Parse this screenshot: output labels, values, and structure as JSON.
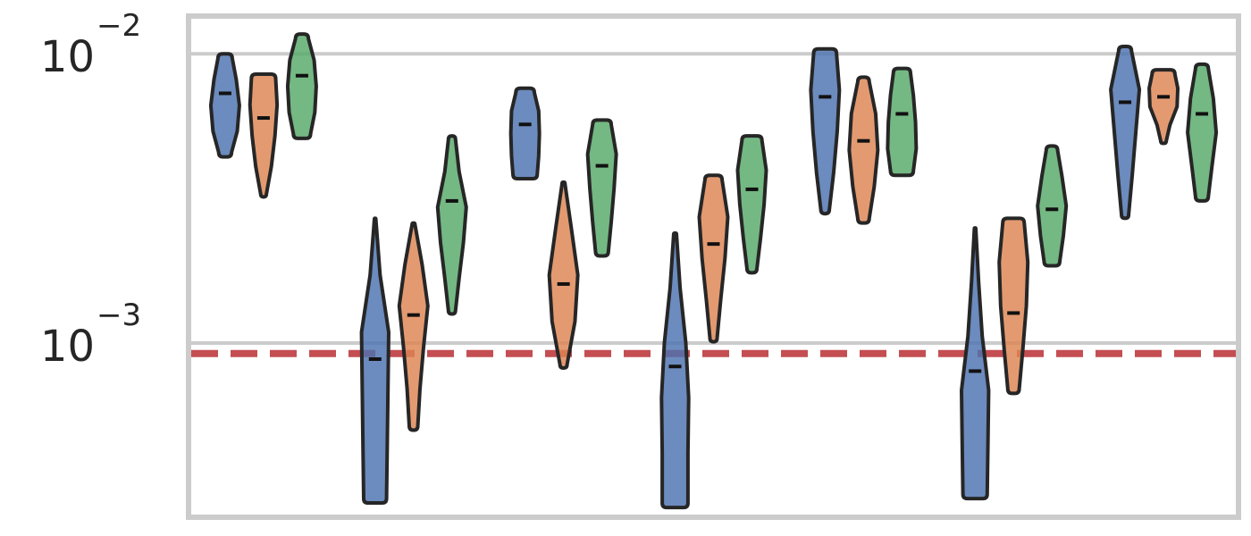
{
  "chart_data": {
    "type": "violin",
    "title": "",
    "xlabel": "",
    "ylabel": "",
    "y_scale": "log",
    "ylim": [
      0.00025,
      0.0135
    ],
    "y_ticks": [
      {
        "value": 0.001,
        "base": "10",
        "exponent": "−3"
      },
      {
        "value": 0.01,
        "base": "10",
        "exponent": "−2"
      }
    ],
    "grid": true,
    "reference_line": {
      "value": 0.00092,
      "color": "#c44e52",
      "style": "dashed"
    },
    "series_colors": [
      "#4c72b0",
      "#dd8452",
      "#55a868"
    ],
    "groups": [
      {
        "violins": [
          {
            "min": 0.0044,
            "max": 0.01,
            "median": 0.0073,
            "widths": [
              0.45,
              0.85,
              1.0,
              0.78,
              0.5
            ]
          },
          {
            "min": 0.0032,
            "max": 0.0085,
            "median": 0.006,
            "widths": [
              0.2,
              0.55,
              0.8,
              0.95,
              0.85
            ]
          },
          {
            "min": 0.0051,
            "max": 0.0117,
            "median": 0.0084,
            "widths": [
              0.6,
              0.9,
              1.0,
              0.85,
              0.45
            ]
          }
        ]
      },
      {
        "violins": [
          {
            "min": 0.00028,
            "max": 0.0027,
            "median": 0.00088,
            "widths": [
              0.8,
              0.85,
              0.9,
              0.95,
              0.35,
              0.05
            ]
          },
          {
            "min": 0.0005,
            "max": 0.0026,
            "median": 0.00125,
            "widths": [
              0.3,
              0.45,
              0.7,
              1.0,
              0.6,
              0.1
            ]
          },
          {
            "min": 0.00126,
            "max": 0.0052,
            "median": 0.0031,
            "widths": [
              0.25,
              0.5,
              0.8,
              1.0,
              0.5,
              0.25
            ]
          }
        ]
      },
      {
        "violins": [
          {
            "min": 0.0037,
            "max": 0.0076,
            "median": 0.0057,
            "widths": [
              0.85,
              0.95,
              1.0,
              0.95,
              0.65
            ]
          },
          {
            "min": 0.00082,
            "max": 0.0036,
            "median": 0.0016,
            "widths": [
              0.25,
              0.8,
              1.0,
              0.55,
              0.1
            ]
          },
          {
            "min": 0.002,
            "max": 0.0059,
            "median": 0.0041,
            "widths": [
              0.45,
              0.65,
              0.85,
              1.0,
              0.65
            ]
          }
        ]
      },
      {
        "violins": [
          {
            "min": 0.00027,
            "max": 0.0024,
            "median": 0.00083,
            "widths": [
              0.9,
              0.9,
              0.95,
              0.75,
              0.35,
              0.1
            ]
          },
          {
            "min": 0.00101,
            "max": 0.0038,
            "median": 0.0022,
            "widths": [
              0.25,
              0.5,
              0.8,
              1.0,
              0.6
            ]
          },
          {
            "min": 0.00175,
            "max": 0.0052,
            "median": 0.0034,
            "widths": [
              0.35,
              0.6,
              0.85,
              1.0,
              0.7
            ]
          }
        ]
      },
      {
        "violins": [
          {
            "min": 0.0028,
            "max": 0.0104,
            "median": 0.0071,
            "widths": [
              0.3,
              0.6,
              0.85,
              1.0,
              0.8
            ]
          },
          {
            "min": 0.0026,
            "max": 0.0083,
            "median": 0.005,
            "widths": [
              0.4,
              0.75,
              1.0,
              0.85,
              0.4
            ]
          },
          {
            "min": 0.0038,
            "max": 0.0089,
            "median": 0.0062,
            "widths": [
              0.8,
              1.0,
              0.95,
              0.8,
              0.6
            ]
          }
        ]
      },
      {
        "violins": [
          {
            "min": 0.00029,
            "max": 0.0025,
            "median": 0.0008,
            "widths": [
              0.85,
              0.9,
              0.95,
              0.5,
              0.25,
              0.05
            ]
          },
          {
            "min": 0.00067,
            "max": 0.0027,
            "median": 0.00127,
            "widths": [
              0.4,
              0.65,
              0.9,
              1.0,
              0.75
            ]
          },
          {
            "min": 0.00185,
            "max": 0.0048,
            "median": 0.0029,
            "widths": [
              0.55,
              0.8,
              1.0,
              0.7,
              0.4
            ]
          }
        ]
      },
      {
        "violins": [
          {
            "min": 0.0027,
            "max": 0.0106,
            "median": 0.0068,
            "widths": [
              0.25,
              0.5,
              0.75,
              1.0,
              0.45
            ]
          },
          {
            "min": 0.0049,
            "max": 0.0088,
            "median": 0.0071,
            "widths": [
              0.2,
              0.45,
              0.95,
              1.0,
              0.8
            ]
          },
          {
            "min": 0.0031,
            "max": 0.0092,
            "median": 0.0062,
            "widths": [
              0.45,
              0.7,
              1.0,
              0.8,
              0.45
            ]
          }
        ]
      }
    ]
  }
}
